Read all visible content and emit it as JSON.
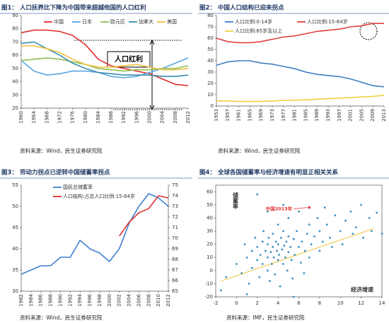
{
  "chart_data": [
    {
      "type": "line",
      "figure_label": "图1：",
      "title": "人口抚养比下降为中国带来超越他国的人口红利",
      "source": "资料来源：Wind，民生证券研究院",
      "x": [
        1960,
        1964,
        1968,
        1972,
        1976,
        1980,
        1984,
        1988,
        1992,
        1996,
        2000,
        2004,
        2008,
        2012
      ],
      "series": [
        {
          "name": "中国",
          "color": "#e03030",
          "values": [
            77,
            79,
            79,
            78,
            75,
            68,
            57,
            52,
            50,
            48,
            46,
            42,
            38,
            37
          ]
        },
        {
          "name": "日本",
          "color": "#5aa5e0",
          "values": [
            56,
            48,
            45,
            46,
            48,
            48,
            47,
            44,
            43,
            44,
            47,
            50,
            54,
            58
          ]
        },
        {
          "name": "欧元区",
          "color": "#8fbf50",
          "values": [
            56,
            57,
            58,
            57,
            55,
            53,
            50,
            49,
            48,
            49,
            49,
            50,
            50,
            52
          ]
        },
        {
          "name": "加拿大",
          "color": "#3a8fb0",
          "values": [
            69,
            70,
            65,
            60,
            54,
            50,
            47,
            46,
            45,
            45,
            45,
            44,
            44,
            45
          ]
        },
        {
          "name": "美国",
          "color": "#f0c040",
          "values": [
            67,
            67,
            65,
            62,
            57,
            53,
            51,
            51,
            52,
            53,
            51,
            49,
            49,
            50
          ]
        }
      ],
      "xlim": [
        1960,
        2012
      ],
      "xticks": [
        1960,
        1964,
        1968,
        1972,
        1976,
        1980,
        1984,
        1988,
        1992,
        1996,
        2000,
        2004,
        2008,
        2012
      ],
      "ylim": [
        20,
        90
      ],
      "yticks": [
        20,
        30,
        40,
        50,
        60,
        70,
        80,
        90
      ],
      "legend": "top",
      "annotation": "人口红利"
    },
    {
      "type": "line",
      "figure_label": "图2：",
      "title": "中国人口结构已迎来拐点",
      "source": "资料来源：Wind，民生证券研究院",
      "x": [
        1953,
        1957,
        1961,
        1965,
        1969,
        1973,
        1977,
        1981,
        1985,
        1989,
        1993,
        1997,
        2001,
        2005,
        2009,
        2013
      ],
      "series": [
        {
          "name": "人口比例:0-14岁",
          "color": "#3f7fbf",
          "values": [
            36,
            39,
            40,
            40,
            38,
            37,
            35,
            33,
            30,
            28,
            27,
            26,
            24,
            21,
            18,
            17
          ]
        },
        {
          "name": "人口比例:15-64岁",
          "color": "#e04040",
          "values": [
            60,
            57,
            56,
            56,
            57,
            59,
            61,
            62,
            64,
            66,
            67,
            68,
            70,
            71,
            73,
            73
          ]
        },
        {
          "name": "人口比例:65岁及以上",
          "color": "#f0d040",
          "values": [
            4.5,
            4.5,
            4,
            4,
            4,
            4.5,
            5,
            5,
            5.5,
            6,
            6.5,
            7,
            7.5,
            8,
            8.5,
            9.5
          ]
        }
      ],
      "xlim": [
        1953,
        2013
      ],
      "xticks": [
        1953,
        1957,
        1961,
        1965,
        1969,
        1973,
        1977,
        1981,
        1985,
        1989,
        1993,
        1997,
        2001,
        2005,
        2009,
        2013
      ],
      "ylim": [
        0,
        80
      ],
      "yticks": [
        0,
        10,
        20,
        30,
        40,
        50,
        60,
        70,
        80
      ],
      "legend": "upper-left"
    },
    {
      "type": "line",
      "figure_label": "图3：",
      "title": "劳动力拐点已逆转中国储蓄率拐点",
      "source": "资料来源：Wind，民生证券研究院",
      "x": [
        1982,
        1984,
        1986,
        1988,
        1990,
        1992,
        1994,
        1996,
        1998,
        2000,
        2002,
        2004,
        2006,
        2008,
        2010,
        2012
      ],
      "series": [
        {
          "name": "国民总储蓄率",
          "color": "#3f7fd0",
          "values": [
            34,
            35,
            36,
            36,
            38,
            38,
            42,
            40,
            39,
            37,
            40,
            46,
            50,
            53,
            52,
            50
          ]
        },
        {
          "name": "人口结构:占总人口比例:15-64岁",
          "color": "#e03030",
          "axis": "y2",
          "values": [
            null,
            null,
            null,
            null,
            null,
            null,
            null,
            null,
            null,
            null,
            70.2,
            71.5,
            72.4,
            72.8,
            74,
            73.8
          ]
        }
      ],
      "xlim": [
        1982,
        2012
      ],
      "xticks": [
        1982,
        1984,
        1986,
        1988,
        1990,
        1992,
        1994,
        1996,
        1998,
        2000,
        2002,
        2004,
        2006,
        2008,
        2010,
        2012
      ],
      "ylim": [
        30,
        55
      ],
      "yticks": [
        30,
        35,
        40,
        45,
        50,
        55
      ],
      "y2lim": [
        65,
        75
      ],
      "y2ticks": [
        65,
        66,
        67,
        68,
        69,
        70,
        71,
        72,
        73,
        74,
        75
      ],
      "legend": "upper-left"
    },
    {
      "type": "scatter",
      "figure_label": "图4：",
      "title": "全球各国储蓄率与经济增速有明显正相关关系",
      "source": "资料来源：IMF，民生证券研究院",
      "xlabel": "经济增速",
      "ylabel": "储蓄率",
      "color": "#3a8fc0",
      "x": [
        -1,
        0,
        0.5,
        0.8,
        1,
        1.2,
        1.5,
        1.5,
        1.8,
        2,
        2,
        2.2,
        2.3,
        2.5,
        2.5,
        2.6,
        2.8,
        3,
        3,
        3,
        3.1,
        3.2,
        3.3,
        3.4,
        3.5,
        3.5,
        3.6,
        3.7,
        3.8,
        3.9,
        4,
        4,
        4,
        4.1,
        4.2,
        4.3,
        4.4,
        4.5,
        4.5,
        4.6,
        4.7,
        4.8,
        4.9,
        5,
        5,
        5,
        5.2,
        5.3,
        5.4,
        5.5,
        5.6,
        5.8,
        6,
        6,
        6.2,
        6.3,
        6.5,
        6.6,
        6.8,
        7,
        7,
        7.2,
        7.5,
        7.8,
        8,
        8,
        8.3,
        8.5,
        8.7,
        9,
        9.2,
        9.5,
        10,
        10.2,
        10.5,
        11,
        11.2,
        11.5,
        12,
        12.2,
        12.8,
        13,
        13.5,
        14,
        -1.5,
        1,
        5.5,
        2,
        4.5,
        3
      ],
      "y": [
        -5,
        5,
        -2,
        20,
        10,
        -10,
        15,
        2,
        25,
        8,
        18,
        -5,
        12,
        22,
        5,
        30,
        15,
        0,
        10,
        20,
        25,
        -8,
        14,
        5,
        18,
        28,
        10,
        -3,
        22,
        15,
        8,
        20,
        35,
        12,
        -12,
        25,
        16,
        5,
        30,
        19,
        10,
        22,
        0,
        14,
        26,
        40,
        18,
        8,
        -6,
        24,
        12,
        30,
        18,
        45,
        6,
        22,
        -2,
        15,
        28,
        10,
        35,
        20,
        26,
        40,
        15,
        30,
        22,
        48,
        35,
        25,
        18,
        42,
        30,
        20,
        38,
        45,
        28,
        33,
        50,
        25,
        40,
        30,
        44,
        28,
        -15,
        -18,
        -20,
        58,
        50,
        45
      ],
      "highlight": {
        "label": "中国2013年",
        "x": 7,
        "y": 48,
        "color": "#e03030"
      },
      "trendline": {
        "x": [
          -1.5,
          13.2
        ],
        "y": [
          -8,
          32
        ],
        "color": "#f0d060"
      },
      "xlim": [
        -2,
        14
      ],
      "xticks": [
        -2,
        0,
        2,
        4,
        6,
        8,
        10,
        12,
        14
      ],
      "ylim": [
        -20,
        65
      ],
      "yticks": [
        -20,
        -10,
        0,
        10,
        20,
        30,
        40,
        50,
        60
      ]
    }
  ]
}
